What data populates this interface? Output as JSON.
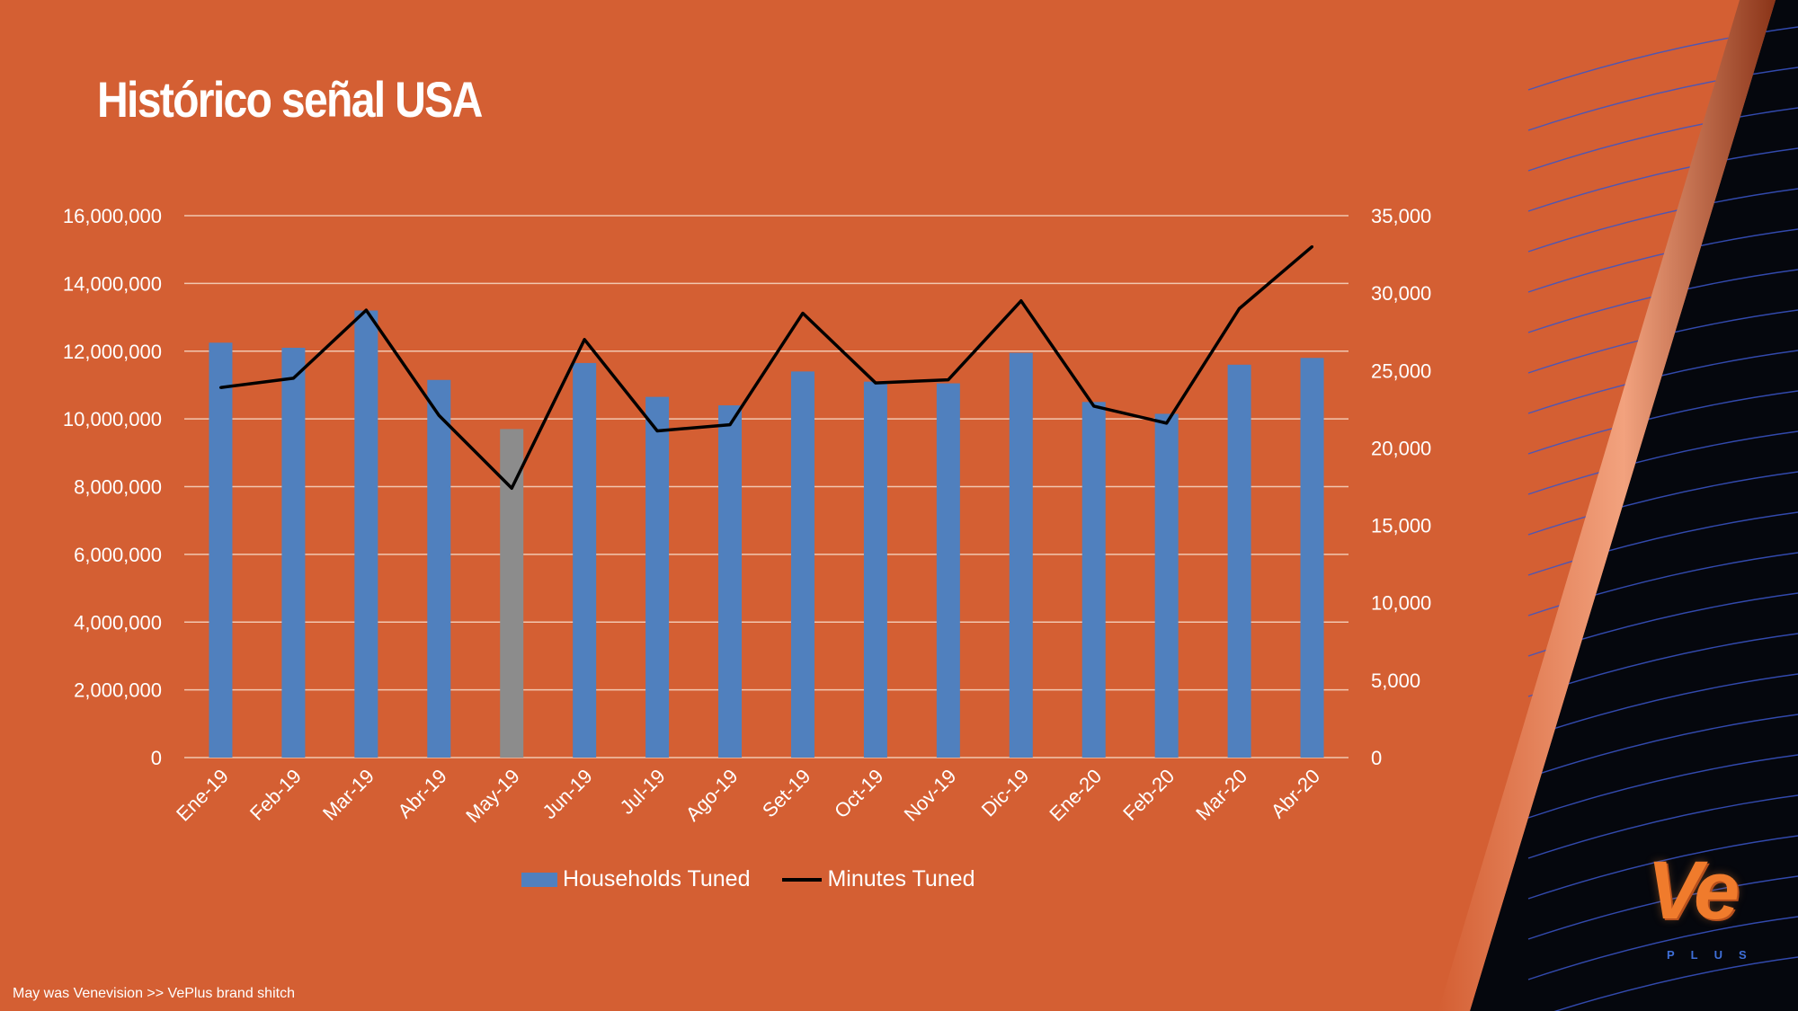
{
  "slide": {
    "title": "Histórico señal USA",
    "footnote": "May was Venevision >> VePlus brand shitch",
    "logo": {
      "main": "Ve",
      "sub": "PLUS"
    }
  },
  "colors": {
    "background": "#D45F33",
    "bar": "#5080BE",
    "bar_highlight": "#8C8C8C",
    "line": "#000000",
    "gridline": "#F2C7B0",
    "text": "#FFFFFF",
    "dark_panel": "#05070D",
    "panel_lines": "#3A55C8"
  },
  "chart_data": {
    "type": "bar",
    "categories": [
      "Ene-19",
      "Feb-19",
      "Mar-19",
      "Abr-19",
      "May-19",
      "Jun-19",
      "Jul-19",
      "Ago-19",
      "Set-19",
      "Oct-19",
      "Nov-19",
      "Dic-19",
      "Ene-20",
      "Feb-20",
      "Mar-20",
      "Abr-20"
    ],
    "series": [
      {
        "name": "Households Tuned",
        "type": "bar",
        "axis": "left",
        "values": [
          12250000,
          12100000,
          13200000,
          11150000,
          9700000,
          11650000,
          10650000,
          10400000,
          11400000,
          11100000,
          11050000,
          11950000,
          10500000,
          10150000,
          11600000,
          11800000
        ],
        "highlight_index": 4
      },
      {
        "name": "Minutes Tuned",
        "type": "line",
        "axis": "right",
        "values": [
          23900,
          24500,
          28900,
          22100,
          17400,
          27000,
          21100,
          21500,
          28700,
          24200,
          24400,
          29500,
          22700,
          21600,
          29000,
          33000
        ]
      }
    ],
    "y_left": {
      "min": 0,
      "max": 16000000,
      "ticks": [
        "0",
        "2,000,000",
        "4,000,000",
        "6,000,000",
        "8,000,000",
        "10,000,000",
        "12,000,000",
        "14,000,000",
        "16,000,000"
      ]
    },
    "y_right": {
      "min": 0,
      "max": 35000,
      "ticks": [
        "0",
        "5,000",
        "10,000",
        "15,000",
        "20,000",
        "25,000",
        "30,000",
        "35,000"
      ]
    },
    "grid": true,
    "legend_position": "bottom"
  }
}
